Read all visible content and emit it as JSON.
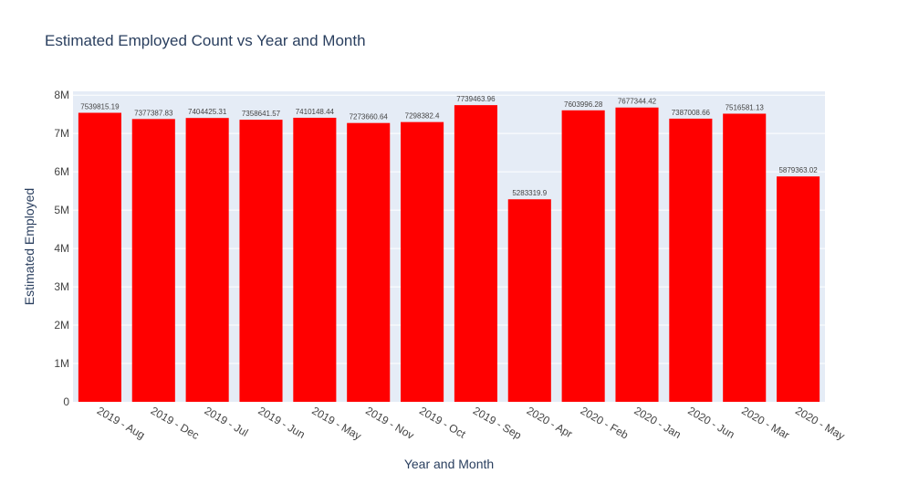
{
  "chart_data": {
    "type": "bar",
    "title": "Estimated Employed Count vs Year and Month",
    "xlabel": "Year and Month",
    "ylabel": "Estimated Employed",
    "categories": [
      "2019 - Aug",
      "2019 - Dec",
      "2019 - Jul",
      "2019 - Jun",
      "2019 - May",
      "2019 - Nov",
      "2019 - Oct",
      "2019 - Sep",
      "2020 - Apr",
      "2020 - Feb",
      "2020 - Jan",
      "2020 - Jun",
      "2020 - Mar",
      "2020 - May"
    ],
    "values": [
      7539815.19,
      7377387.83,
      7404425.31,
      7358641.57,
      7410148.44,
      7273660.64,
      7298382.4,
      7739463.96,
      5283319.9,
      7603996.28,
      7677344.42,
      7387008.66,
      7516581.13,
      5879363.02
    ],
    "value_labels": [
      "7539815.19",
      "7377387.83",
      "7404425.31",
      "7358641.57",
      "7410148.44",
      "7273660.64",
      "7298382.4",
      "7739463.96",
      "5283319.9",
      "7603996.28",
      "7677344.42",
      "7387008.66",
      "7516581.13",
      "5879363.02"
    ],
    "ylim": [
      0,
      8100000
    ],
    "yticks": [
      0,
      1000000,
      2000000,
      3000000,
      4000000,
      5000000,
      6000000,
      7000000,
      8000000
    ],
    "ytick_labels": [
      "0",
      "1M",
      "2M",
      "3M",
      "4M",
      "5M",
      "6M",
      "7M",
      "8M"
    ],
    "grid": true,
    "legend": "none",
    "colors": {
      "bar": "#ff0000",
      "plot_background": "#e5ecf6",
      "grid": "#ffffff",
      "text": "#2a3f5f",
      "tick_text": "#444444"
    }
  }
}
